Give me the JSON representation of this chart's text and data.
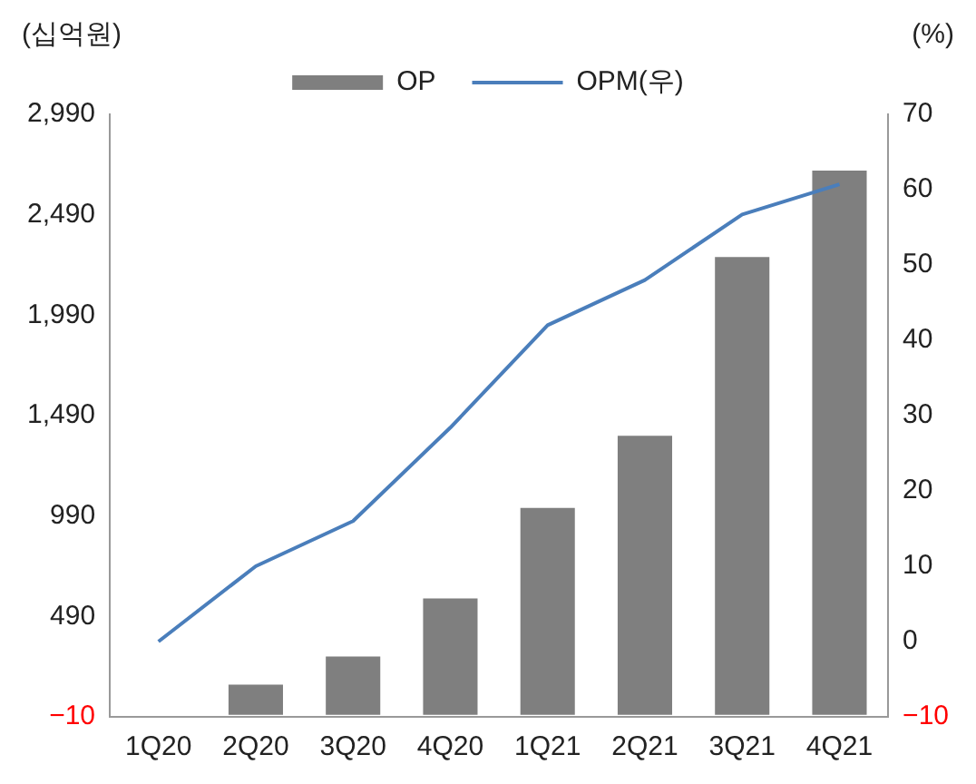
{
  "chart_data": {
    "type": "bar",
    "ylabel": "(십억원)",
    "y2label": "(%)",
    "categories": [
      "1Q20",
      "2Q20",
      "3Q20",
      "4Q20",
      "1Q21",
      "2Q21",
      "3Q21",
      "4Q21"
    ],
    "series": [
      {
        "name": "OP",
        "color": "#7f7f7f",
        "values": [
          0,
          150,
          290,
          580,
          1030,
          1390,
          2280,
          2710
        ]
      },
      {
        "name": "OPM(우)",
        "type": "line",
        "axis": "y2",
        "color": "#4a7ebb",
        "values": [
          0,
          10,
          16,
          28.4,
          42,
          48,
          56.7,
          60.7
        ]
      }
    ],
    "ylim": [
      -10,
      2990
    ],
    "yticks": [
      {
        "value": -10,
        "label": "−10"
      },
      490,
      990,
      {
        "value": 1490,
        "label": "1,490"
      },
      {
        "value": 1990,
        "label": "1,990"
      },
      {
        "value": 2490,
        "label": "2,490"
      },
      {
        "value": 2990,
        "label": "2,990"
      }
    ],
    "y2lim": [
      -10,
      70
    ],
    "y2ticks": [
      {
        "value": -10,
        "label": "−10"
      },
      0,
      10,
      20,
      30,
      40,
      50,
      60,
      70
    ],
    "legend": "top",
    "grid": false,
    "marker": "none"
  }
}
